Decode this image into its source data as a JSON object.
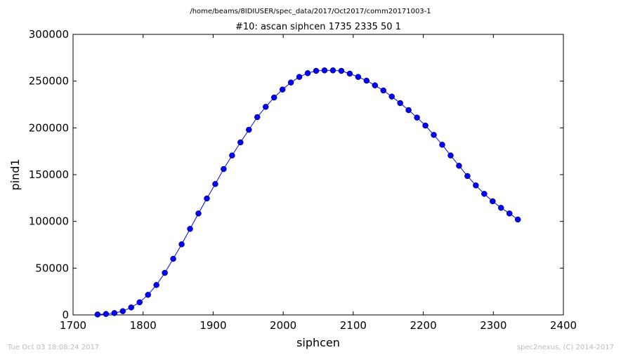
{
  "header": {
    "path": "/home/beams/8IDIUSER/spec_data/2017/Oct2017/comm20171003-1"
  },
  "footer": {
    "timestamp": "Tue Oct 03 18:08:24 2017",
    "credit": "spec2nexus, (C) 2014-2017"
  },
  "chart_data": {
    "type": "line",
    "title": "#10: ascan  siphcen 1735 2335  50 1",
    "xlabel": "siphcen",
    "ylabel": "pind1",
    "xlim": [
      1700,
      2400
    ],
    "ylim": [
      0,
      300000
    ],
    "xticks": [
      1700,
      1800,
      1900,
      2000,
      2100,
      2200,
      2300,
      2400
    ],
    "yticks": [
      0,
      50000,
      100000,
      150000,
      200000,
      250000,
      300000
    ],
    "xtick_labels": [
      "1700",
      "1800",
      "1900",
      "2000",
      "2100",
      "2200",
      "2300",
      "2400"
    ],
    "ytick_labels": [
      "0",
      "50000",
      "100000",
      "150000",
      "200000",
      "250000",
      "300000"
    ],
    "grid": false,
    "legend": false,
    "line_color": "#0000ff",
    "marker_color": "#0000ff",
    "marker": "circle",
    "series": [
      {
        "x": [
          1735,
          1747,
          1759,
          1771,
          1783,
          1795,
          1807,
          1819,
          1831,
          1843,
          1855,
          1867,
          1879,
          1891,
          1903,
          1915,
          1927,
          1939,
          1951,
          1963,
          1975,
          1987,
          1999,
          2011,
          2023,
          2035,
          2047,
          2059,
          2071,
          2083,
          2095,
          2107,
          2119,
          2131,
          2143,
          2155,
          2167,
          2179,
          2191,
          2203,
          2215,
          2227,
          2239,
          2251,
          2263,
          2275,
          2287,
          2299,
          2311,
          2323,
          2335
        ],
        "values": [
          500,
          1000,
          2000,
          4000,
          8000,
          13500,
          21500,
          32000,
          45000,
          60000,
          75500,
          92000,
          108500,
          124500,
          140000,
          156000,
          170500,
          184500,
          198000,
          211500,
          222500,
          232500,
          241000,
          248500,
          254500,
          258500,
          261000,
          261500,
          261500,
          261000,
          258000,
          254500,
          250500,
          245500,
          240000,
          233500,
          226500,
          219000,
          211000,
          202500,
          192500,
          182000,
          170500,
          159500,
          148500,
          138500,
          129500,
          121500,
          114500,
          108500,
          102000
        ]
      }
    ]
  }
}
